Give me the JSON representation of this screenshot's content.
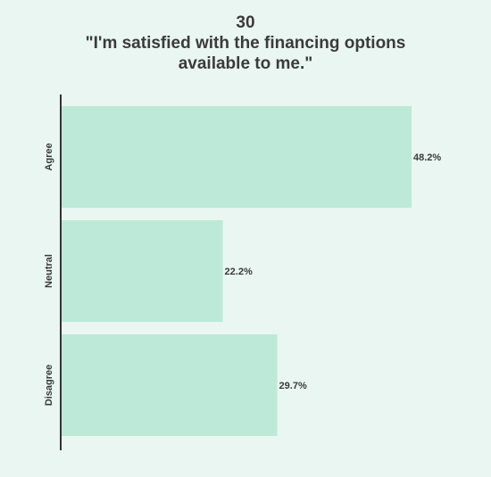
{
  "chart_data": {
    "type": "bar",
    "orientation": "horizontal",
    "title_lines": [
      "30",
      "\"I'm satisfied with the financing options",
      "available to me.\""
    ],
    "categories": [
      "Agree",
      "Neutral",
      "Disagree"
    ],
    "values": [
      48.2,
      22.2,
      29.7
    ],
    "value_labels": [
      "48.2%",
      "22.2%",
      "29.7%"
    ],
    "xlim": [
      0,
      60
    ],
    "grid": false,
    "legend": "none",
    "bar_color": "#bde9d8",
    "axis_color": "#333333",
    "background": "#eaf6f1"
  }
}
